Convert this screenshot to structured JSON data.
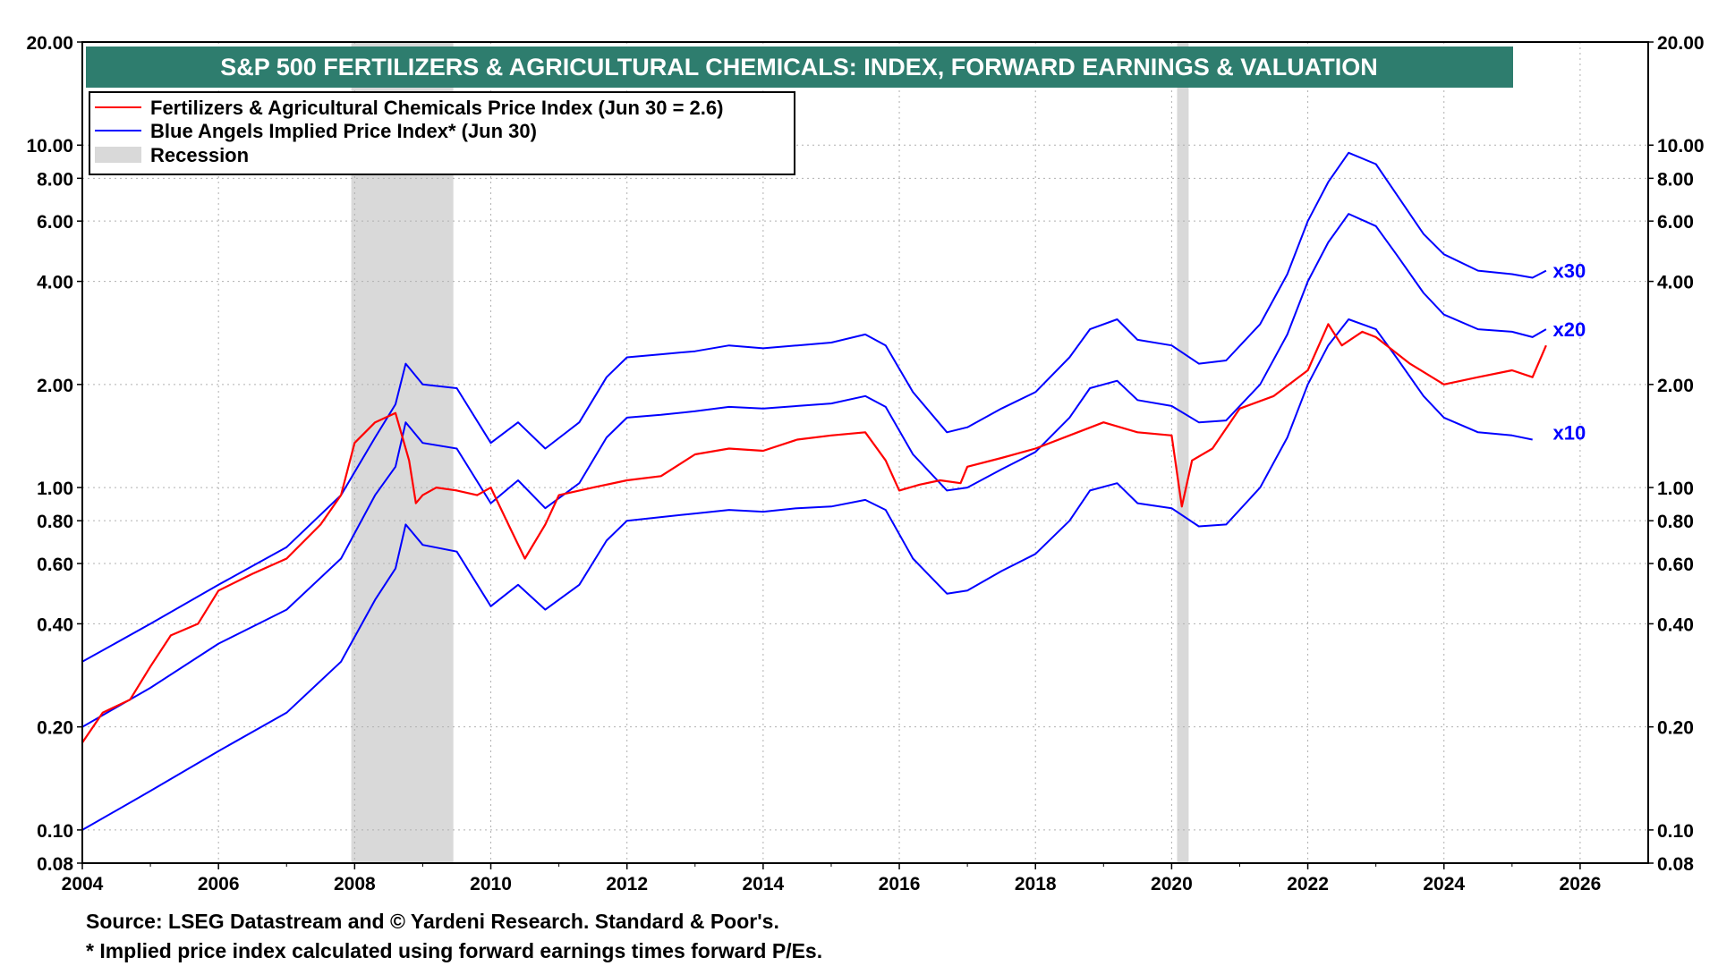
{
  "chart_data": {
    "type": "line",
    "title": "S&P 500 FERTILIZERS & AGRICULTURAL CHEMICALS: INDEX, FORWARD EARNINGS & VALUATION",
    "xlabel": "",
    "ylabel": "",
    "y_scale": "log",
    "ylim": [
      0.08,
      20
    ],
    "xlim": [
      2004,
      2027
    ],
    "x_ticks": [
      "2004",
      "2006",
      "2008",
      "2010",
      "2012",
      "2014",
      "2016",
      "2018",
      "2020",
      "2022",
      "2024",
      "2026"
    ],
    "y_ticks": [
      "20.00",
      "10.00",
      "8.00",
      "6.00",
      "4.00",
      "2.00",
      "1.00",
      "0.80",
      "0.60",
      "0.40",
      "0.20",
      "0.10",
      "0.08"
    ],
    "grid": true,
    "legend_position": "top-left",
    "legend": [
      {
        "label": "Fertilizers & Agricultural Chemicals Price Index (Jun 30 = 2.6)",
        "swatch": "line",
        "color": "#ff0000"
      },
      {
        "label": "Blue Angels Implied Price Index* (Jun 30)",
        "swatch": "line",
        "color": "#0000ff"
      },
      {
        "label": "Recession",
        "swatch": "box",
        "color": "#d9d9d9"
      }
    ],
    "recessions": [
      [
        2007.95,
        2009.45
      ],
      [
        2020.08,
        2020.25
      ]
    ],
    "series": [
      {
        "name": "Fertilizers & Agricultural Chemicals Price Index (Jun 30 = 2.6)",
        "color": "#ff0000",
        "x": [
          2004.0,
          2004.3,
          2004.7,
          2005.0,
          2005.3,
          2005.7,
          2006.0,
          2006.5,
          2007.0,
          2007.5,
          2007.8,
          2008.0,
          2008.3,
          2008.6,
          2008.8,
          2008.9,
          2009.0,
          2009.2,
          2009.5,
          2009.8,
          2010.0,
          2010.3,
          2010.5,
          2010.8,
          2011.0,
          2011.5,
          2012.0,
          2012.5,
          2013.0,
          2013.5,
          2014.0,
          2014.5,
          2015.0,
          2015.5,
          2015.8,
          2016.0,
          2016.3,
          2016.6,
          2016.9,
          2017.0,
          2017.5,
          2018.0,
          2018.5,
          2019.0,
          2019.5,
          2020.0,
          2020.15,
          2020.3,
          2020.6,
          2021.0,
          2021.5,
          2022.0,
          2022.3,
          2022.5,
          2022.8,
          2023.0,
          2023.5,
          2024.0,
          2024.5,
          2025.0,
          2025.3,
          2025.5
        ],
        "values": [
          0.18,
          0.22,
          0.24,
          0.3,
          0.37,
          0.4,
          0.5,
          0.56,
          0.62,
          0.78,
          0.95,
          1.35,
          1.55,
          1.65,
          1.2,
          0.9,
          0.95,
          1.0,
          0.98,
          0.95,
          1.0,
          0.75,
          0.62,
          0.78,
          0.95,
          1.0,
          1.05,
          1.08,
          1.25,
          1.3,
          1.28,
          1.38,
          1.42,
          1.45,
          1.2,
          0.98,
          1.02,
          1.05,
          1.03,
          1.15,
          1.22,
          1.3,
          1.42,
          1.55,
          1.45,
          1.42,
          0.88,
          1.2,
          1.3,
          1.7,
          1.85,
          2.2,
          3.0,
          2.6,
          2.85,
          2.75,
          2.3,
          2.0,
          2.1,
          2.2,
          2.1,
          2.6
        ]
      },
      {
        "name": "x30",
        "color": "#0000ff",
        "x": [
          2004.0,
          2005.0,
          2006.0,
          2007.0,
          2007.8,
          2008.3,
          2008.6,
          2008.75,
          2009.0,
          2009.5,
          2010.0,
          2010.4,
          2010.8,
          2011.3,
          2011.7,
          2012.0,
          2012.5,
          2013.0,
          2013.5,
          2014.0,
          2014.5,
          2015.0,
          2015.5,
          2015.8,
          2016.2,
          2016.7,
          2017.0,
          2017.5,
          2018.0,
          2018.5,
          2018.8,
          2019.2,
          2019.5,
          2020.0,
          2020.4,
          2020.8,
          2021.3,
          2021.7,
          2022.0,
          2022.3,
          2022.6,
          2023.0,
          2023.3,
          2023.7,
          2024.0,
          2024.5,
          2025.0,
          2025.3,
          2025.5
        ],
        "values": [
          0.31,
          0.4,
          0.52,
          0.67,
          0.95,
          1.4,
          1.75,
          2.3,
          2.0,
          1.95,
          1.35,
          1.55,
          1.3,
          1.55,
          2.1,
          2.4,
          2.45,
          2.5,
          2.6,
          2.55,
          2.6,
          2.65,
          2.8,
          2.6,
          1.9,
          1.45,
          1.5,
          1.7,
          1.9,
          2.4,
          2.9,
          3.1,
          2.7,
          2.6,
          2.3,
          2.35,
          3.0,
          4.2,
          6.0,
          7.8,
          9.5,
          8.8,
          7.2,
          5.5,
          4.8,
          4.3,
          4.2,
          4.1,
          4.3
        ]
      },
      {
        "name": "x20",
        "color": "#0000ff",
        "x": [
          2004.0,
          2005.0,
          2006.0,
          2007.0,
          2007.8,
          2008.3,
          2008.6,
          2008.75,
          2009.0,
          2009.5,
          2010.0,
          2010.4,
          2010.8,
          2011.3,
          2011.7,
          2012.0,
          2012.5,
          2013.0,
          2013.5,
          2014.0,
          2014.5,
          2015.0,
          2015.5,
          2015.8,
          2016.2,
          2016.7,
          2017.0,
          2017.5,
          2018.0,
          2018.5,
          2018.8,
          2019.2,
          2019.5,
          2020.0,
          2020.4,
          2020.8,
          2021.3,
          2021.7,
          2022.0,
          2022.3,
          2022.6,
          2023.0,
          2023.3,
          2023.7,
          2024.0,
          2024.5,
          2025.0,
          2025.3,
          2025.5
        ],
        "values": [
          0.2,
          0.26,
          0.35,
          0.44,
          0.62,
          0.95,
          1.15,
          1.55,
          1.35,
          1.3,
          0.9,
          1.05,
          0.87,
          1.03,
          1.4,
          1.6,
          1.63,
          1.67,
          1.72,
          1.7,
          1.73,
          1.76,
          1.85,
          1.72,
          1.25,
          0.98,
          1.0,
          1.13,
          1.27,
          1.6,
          1.95,
          2.05,
          1.8,
          1.73,
          1.55,
          1.57,
          2.0,
          2.8,
          4.0,
          5.2,
          6.3,
          5.8,
          4.8,
          3.7,
          3.2,
          2.9,
          2.85,
          2.75,
          2.9
        ]
      },
      {
        "name": "x10",
        "color": "#0000ff",
        "x": [
          2004.0,
          2005.0,
          2006.0,
          2007.0,
          2007.8,
          2008.3,
          2008.6,
          2008.75,
          2009.0,
          2009.5,
          2010.0,
          2010.4,
          2010.8,
          2011.3,
          2011.7,
          2012.0,
          2012.5,
          2013.0,
          2013.5,
          2014.0,
          2014.5,
          2015.0,
          2015.5,
          2015.8,
          2016.2,
          2016.7,
          2017.0,
          2017.5,
          2018.0,
          2018.5,
          2018.8,
          2019.2,
          2019.5,
          2020.0,
          2020.4,
          2020.8,
          2021.3,
          2021.7,
          2022.0,
          2022.3,
          2022.6,
          2023.0,
          2023.3,
          2023.7,
          2024.0,
          2024.5,
          2025.0,
          2025.3
        ],
        "values": [
          0.1,
          0.13,
          0.17,
          0.22,
          0.31,
          0.47,
          0.58,
          0.78,
          0.68,
          0.65,
          0.45,
          0.52,
          0.44,
          0.52,
          0.7,
          0.8,
          0.82,
          0.84,
          0.86,
          0.85,
          0.87,
          0.88,
          0.92,
          0.86,
          0.62,
          0.49,
          0.5,
          0.57,
          0.64,
          0.8,
          0.98,
          1.03,
          0.9,
          0.87,
          0.77,
          0.78,
          1.0,
          1.4,
          2.0,
          2.6,
          3.1,
          2.9,
          2.4,
          1.85,
          1.6,
          1.45,
          1.42,
          1.38
        ]
      }
    ],
    "annotations": [
      {
        "text": "x30",
        "x": 2025.6,
        "y": 4.3
      },
      {
        "text": "x20",
        "x": 2025.6,
        "y": 2.9
      },
      {
        "text": "x10",
        "x": 2025.6,
        "y": 1.45
      }
    ]
  },
  "footnotes": {
    "source": "Source: LSEG Datastream and © Yardeni Research. Standard & Poor's.",
    "note": "* Implied price index calculated using forward earnings times forward P/Es."
  },
  "colors": {
    "title_bg": "#2e7d6e",
    "title_text": "#ffffff",
    "price_line": "#ff0000",
    "implied_line": "#0000ff",
    "recession": "#d9d9d9",
    "grid": "#b0b0b0"
  }
}
